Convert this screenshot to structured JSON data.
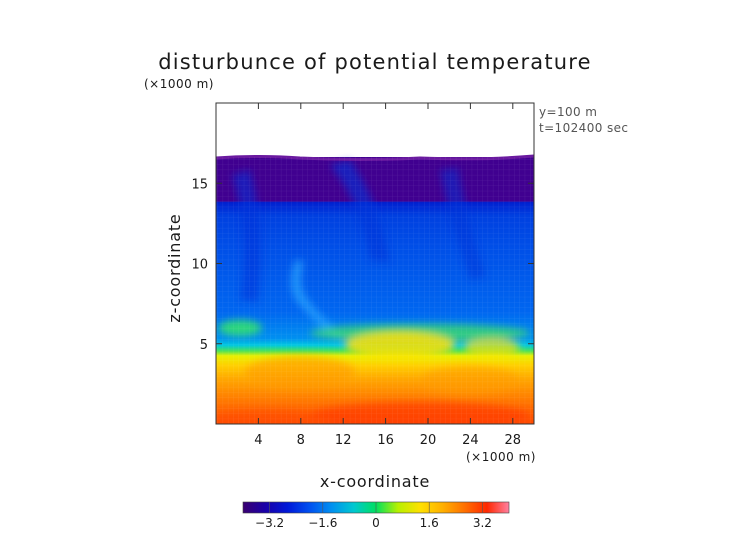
{
  "chart_data": {
    "type": "heatmap",
    "title": "disturbunce of potential temperature",
    "xlabel": "x-coordinate",
    "ylabel": "z-coordinate",
    "x_unit": "(×1000 m)",
    "z_unit": "(×1000 m)",
    "annotations": [
      "y=100 m",
      "t=102400 sec"
    ],
    "xlim": [
      0,
      30
    ],
    "zlim": [
      0,
      20
    ],
    "x_ticks": [
      "4",
      "8",
      "12",
      "16",
      "20",
      "24",
      "28"
    ],
    "z_ticks": [
      "5",
      "10",
      "15"
    ],
    "x_tick_values": [
      4,
      8,
      12,
      16,
      20,
      24,
      28
    ],
    "z_tick_values": [
      5,
      10,
      15
    ],
    "field_top_z": 16.7,
    "colorbar": {
      "range": [
        -4,
        4
      ],
      "tick_labels": [
        "−3.2",
        "−1.6",
        "0",
        "1.6",
        "3.2"
      ],
      "tick_values": [
        -3.2,
        -1.6,
        0,
        1.6,
        3.2
      ],
      "colors": [
        "#3a0070",
        "#1a00a8",
        "#0018d8",
        "#0050f0",
        "#0090f0",
        "#00c8d0",
        "#00e060",
        "#b8f000",
        "#ffe000",
        "#ffb000",
        "#ff7000",
        "#ff2800",
        "#ff80a0"
      ]
    },
    "grid": true,
    "legend": "bottom"
  }
}
